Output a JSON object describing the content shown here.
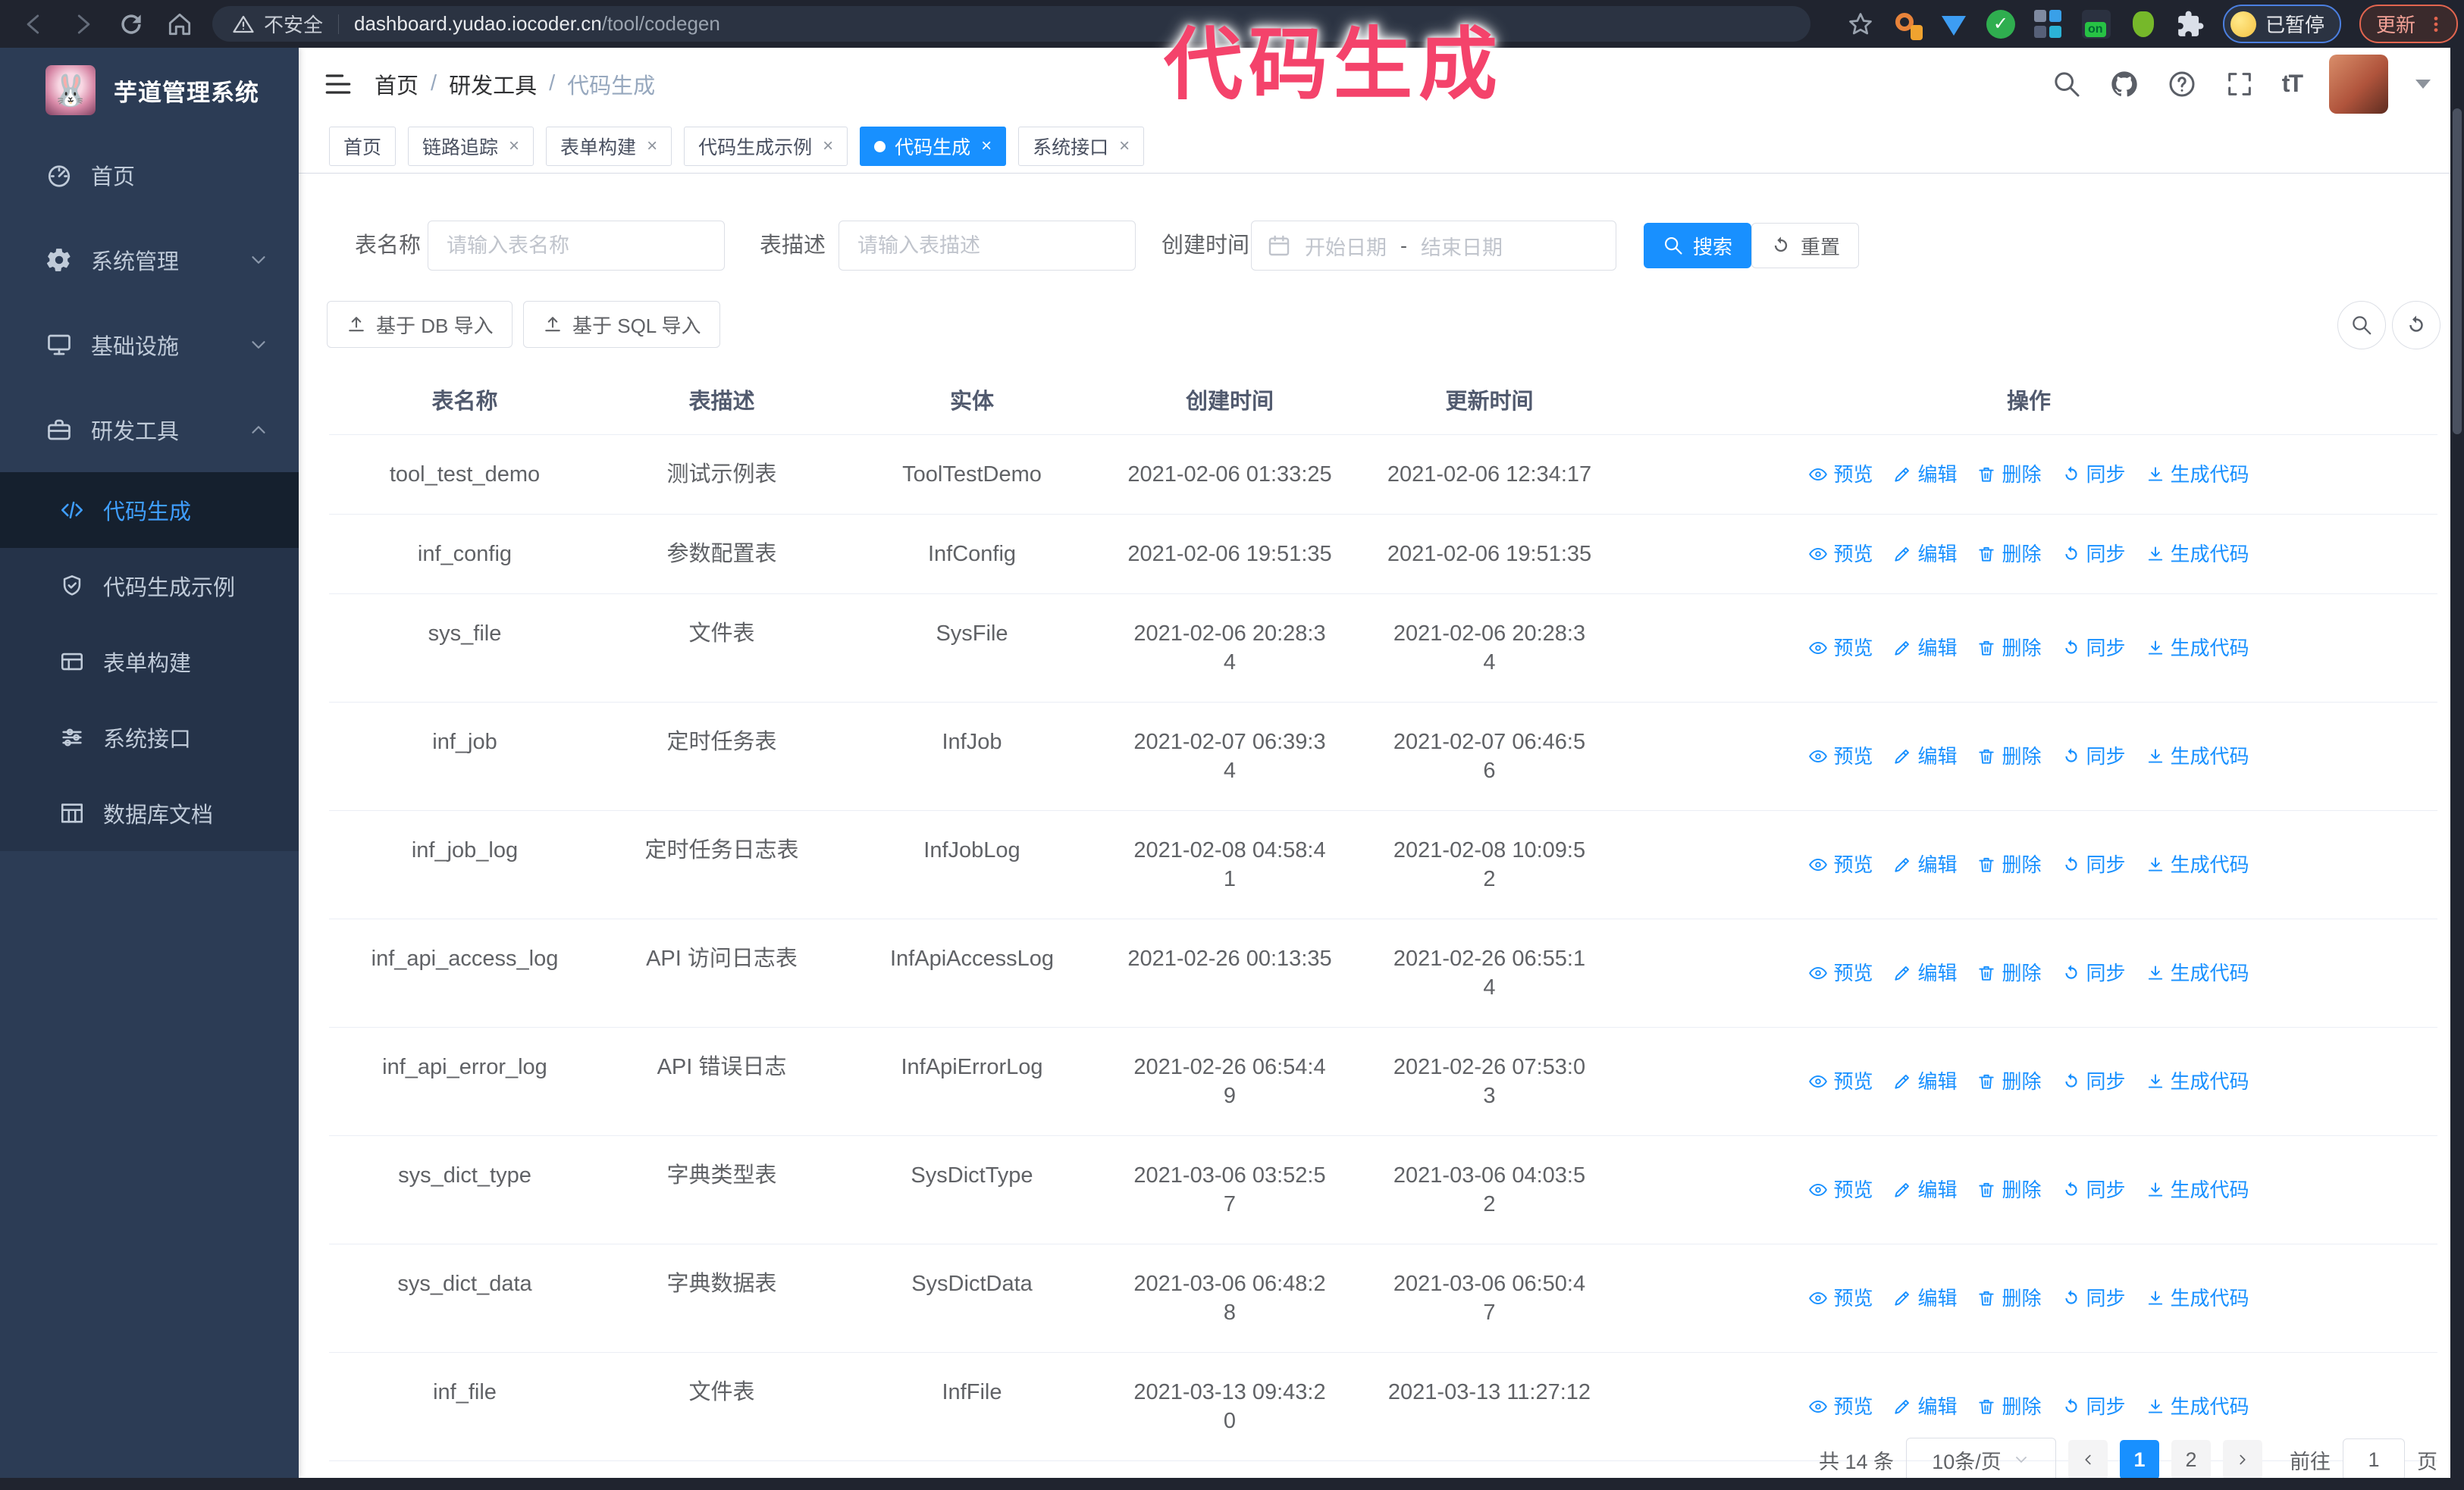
{
  "annotation": {
    "text": "代码生成"
  },
  "browser": {
    "insecure_label": "不安全",
    "url_host": "dashboard.yudao.iocoder.cn",
    "url_path": "/tool/codegen",
    "profile_chip_label": "已暂停",
    "update_label": "更新"
  },
  "sidebar": {
    "title": "芋道管理系统",
    "items": [
      {
        "label": "首页",
        "icon": "dashboard",
        "chevron": ""
      },
      {
        "label": "系统管理",
        "icon": "gear",
        "chevron": "down"
      },
      {
        "label": "基础设施",
        "icon": "monitor",
        "chevron": "down"
      },
      {
        "label": "研发工具",
        "icon": "briefcase",
        "chevron": "up",
        "expanded": true
      }
    ],
    "submenu": [
      {
        "label": "代码生成",
        "icon": "code",
        "active": true
      },
      {
        "label": "代码生成示例",
        "icon": "shield-check",
        "active": false
      },
      {
        "label": "表单构建",
        "icon": "form",
        "active": false
      },
      {
        "label": "系统接口",
        "icon": "sliders",
        "active": false
      },
      {
        "label": "数据库文档",
        "icon": "table-grid",
        "active": false
      }
    ]
  },
  "header": {
    "breadcrumb": [
      "首页",
      "研发工具",
      "代码生成"
    ]
  },
  "tabs": [
    {
      "label": "首页",
      "closable": false,
      "active": false
    },
    {
      "label": "链路追踪",
      "closable": true,
      "active": false
    },
    {
      "label": "表单构建",
      "closable": true,
      "active": false
    },
    {
      "label": "代码生成示例",
      "closable": true,
      "active": false
    },
    {
      "label": "代码生成",
      "closable": true,
      "active": true
    },
    {
      "label": "系统接口",
      "closable": true,
      "active": false
    }
  ],
  "filters": {
    "name_label": "表名称",
    "name_placeholder": "请输入表名称",
    "desc_label": "表描述",
    "desc_placeholder": "请输入表描述",
    "time_label": "创建时间",
    "start_placeholder": "开始日期",
    "range_separator": "-",
    "end_placeholder": "结束日期",
    "search_label": "搜索",
    "reset_label": "重置"
  },
  "toolbar": {
    "db_import_label": "基于 DB 导入",
    "sql_import_label": "基于 SQL 导入"
  },
  "table": {
    "headers": [
      "表名称",
      "表描述",
      "实体",
      "创建时间",
      "更新时间",
      "操作"
    ],
    "actions": [
      {
        "label": "预览",
        "icon": "eye"
      },
      {
        "label": "编辑",
        "icon": "pen"
      },
      {
        "label": "删除",
        "icon": "trash"
      },
      {
        "label": "同步",
        "icon": "sync"
      },
      {
        "label": "生成代码",
        "icon": "download"
      }
    ],
    "rows": [
      {
        "name": "tool_test_demo",
        "desc": "测试示例表",
        "entity": "ToolTestDemo",
        "created": "2021-02-06 01:33:25",
        "updated": "2021-02-06 12:34:17"
      },
      {
        "name": "inf_config",
        "desc": "参数配置表",
        "entity": "InfConfig",
        "created": "2021-02-06 19:51:35",
        "updated": "2021-02-06 19:51:35"
      },
      {
        "name": "sys_file",
        "desc": "文件表",
        "entity": "SysFile",
        "created": "2021-02-06 20:28:3\n4",
        "updated": "2021-02-06 20:28:3\n4"
      },
      {
        "name": "inf_job",
        "desc": "定时任务表",
        "entity": "InfJob",
        "created": "2021-02-07 06:39:3\n4",
        "updated": "2021-02-07 06:46:5\n6"
      },
      {
        "name": "inf_job_log",
        "desc": "定时任务日志表",
        "entity": "InfJobLog",
        "created": "2021-02-08 04:58:4\n1",
        "updated": "2021-02-08 10:09:5\n2"
      },
      {
        "name": "inf_api_access_log",
        "desc": "API 访问日志表",
        "entity": "InfApiAccessLog",
        "created": "2021-02-26 00:13:35",
        "updated": "2021-02-26 06:55:1\n4"
      },
      {
        "name": "inf_api_error_log",
        "desc": "API 错误日志",
        "entity": "InfApiErrorLog",
        "created": "2021-02-26 06:54:4\n9",
        "updated": "2021-02-26 07:53:0\n3"
      },
      {
        "name": "sys_dict_type",
        "desc": "字典类型表",
        "entity": "SysDictType",
        "created": "2021-03-06 03:52:5\n7",
        "updated": "2021-03-06 04:03:5\n2"
      },
      {
        "name": "sys_dict_data",
        "desc": "字典数据表",
        "entity": "SysDictData",
        "created": "2021-03-06 06:48:2\n8",
        "updated": "2021-03-06 06:50:4\n7"
      },
      {
        "name": "inf_file",
        "desc": "文件表",
        "entity": "InfFile",
        "created": "2021-03-13 09:43:2\n0",
        "updated": "2021-03-13 11:27:12"
      }
    ]
  },
  "pagination": {
    "total_label": "共 14 条",
    "page_size_label": "10条/页",
    "pages": [
      "1",
      "2"
    ],
    "active_page": "1",
    "goto_label": "前往",
    "goto_value": "1",
    "page_unit_label": "页"
  },
  "colors": {
    "accent_blue": "#1890ff",
    "menu_active_blue": "#3f9eff",
    "annotation_pink": "#f4436b",
    "sidebar_bg": "#2c3c55"
  }
}
